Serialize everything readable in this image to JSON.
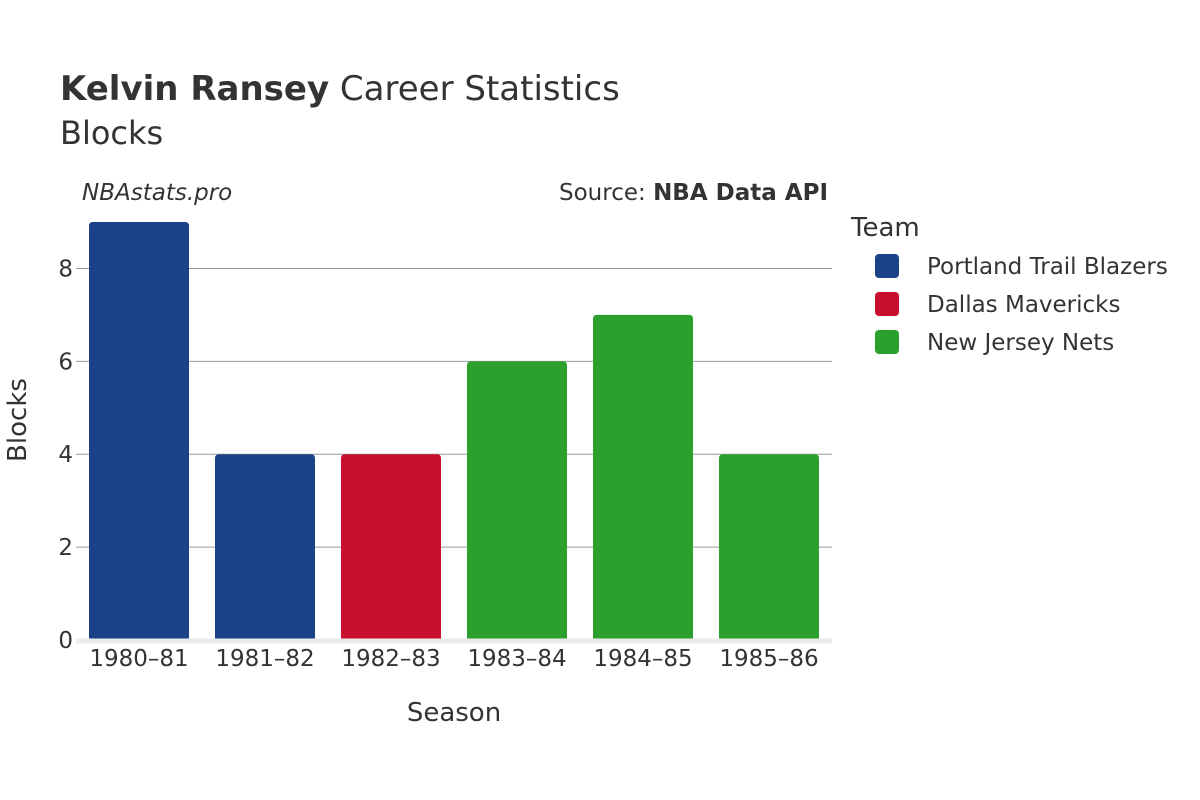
{
  "header": {
    "player_name": "Kelvin Ransey",
    "title_rest": " Career Statistics",
    "subtitle": "Blocks"
  },
  "watermark": "NBAstats.pro",
  "source": {
    "prefix": "Source: ",
    "name": "NBA Data API"
  },
  "legend": {
    "title": "Team",
    "items": [
      {
        "label": "Portland Trail Blazers",
        "color": "#1b4287"
      },
      {
        "label": "Dallas Mavericks",
        "color": "#c8102e"
      },
      {
        "label": "New Jersey Nets",
        "color": "#2ca02c"
      }
    ]
  },
  "chart_data": {
    "type": "bar",
    "xlabel": "Season",
    "ylabel": "Blocks",
    "ylim": [
      0,
      9
    ],
    "yticks": [
      0,
      2,
      4,
      6,
      8
    ],
    "grid": true,
    "legend_placement": "right",
    "categories": [
      "1980–81",
      "1981–82",
      "1982–83",
      "1983–84",
      "1984–85",
      "1985–86"
    ],
    "values": [
      9,
      4,
      4,
      6,
      7,
      4
    ],
    "teams": [
      "Portland Trail Blazers",
      "Portland Trail Blazers",
      "Dallas Mavericks",
      "New Jersey Nets",
      "New Jersey Nets",
      "New Jersey Nets"
    ]
  }
}
